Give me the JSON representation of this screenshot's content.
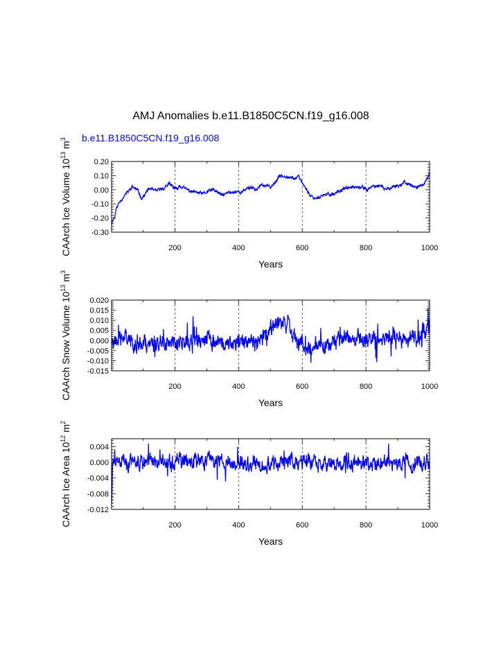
{
  "figure": {
    "title": "AMJ Anomalies b.e11.B1850C5CN.f19_g16.008",
    "case_label": "b.e11.B1850C5CN.f19_g16.008",
    "series_color": "#0000ff"
  },
  "chart_data": [
    {
      "type": "line",
      "id": "ice-volume",
      "ylabel": {
        "main": "CAArch Ice Volume 10",
        "exp": "13",
        "unit": " m",
        "unit_exp": "3"
      },
      "xlabel": "Years",
      "xlim": [
        1,
        1000
      ],
      "ylim": [
        -0.3,
        0.2
      ],
      "yticks": [
        "0.20",
        "0.10",
        "0.00",
        "-0.10",
        "-0.20",
        "-0.30"
      ],
      "ytick_values": [
        0.2,
        0.1,
        0.0,
        -0.1,
        -0.2,
        -0.3
      ],
      "xticks": [
        "200",
        "400",
        "600",
        "800",
        "1000"
      ],
      "xtick_values": [
        200,
        400,
        600,
        800,
        1000
      ],
      "gridlines_x": [
        200,
        400,
        600,
        800
      ],
      "series": [
        {
          "name": "b.e11.B1850C5CN.f19_g16.008",
          "anchors": [
            [
              1,
              -0.24
            ],
            [
              5,
              -0.21
            ],
            [
              10,
              -0.2
            ],
            [
              15,
              -0.14
            ],
            [
              25,
              -0.09
            ],
            [
              35,
              -0.06
            ],
            [
              45,
              -0.03
            ],
            [
              55,
              -0.01
            ],
            [
              65,
              0.02
            ],
            [
              75,
              0.01
            ],
            [
              85,
              -0.01
            ],
            [
              95,
              -0.06
            ],
            [
              105,
              -0.04
            ],
            [
              115,
              0.0
            ],
            [
              125,
              0.01
            ],
            [
              135,
              -0.01
            ],
            [
              150,
              0.0
            ],
            [
              165,
              0.01
            ],
            [
              180,
              0.04
            ],
            [
              190,
              0.03
            ],
            [
              205,
              0.0
            ],
            [
              215,
              0.03
            ],
            [
              230,
              0.01
            ],
            [
              250,
              -0.01
            ],
            [
              270,
              -0.02
            ],
            [
              290,
              -0.03
            ],
            [
              305,
              -0.01
            ],
            [
              320,
              0.0
            ],
            [
              335,
              -0.02
            ],
            [
              350,
              -0.04
            ],
            [
              365,
              -0.02
            ],
            [
              380,
              -0.02
            ],
            [
              395,
              -0.01
            ],
            [
              410,
              -0.02
            ],
            [
              425,
              0.01
            ],
            [
              440,
              0.02
            ],
            [
              455,
              0.0
            ],
            [
              470,
              0.03
            ],
            [
              485,
              0.03
            ],
            [
              500,
              0.02
            ],
            [
              515,
              0.05
            ],
            [
              530,
              0.1
            ],
            [
              545,
              0.1
            ],
            [
              560,
              0.09
            ],
            [
              575,
              0.08
            ],
            [
              590,
              0.09
            ],
            [
              600,
              0.05
            ],
            [
              612,
              0.01
            ],
            [
              625,
              -0.04
            ],
            [
              640,
              -0.06
            ],
            [
              655,
              -0.05
            ],
            [
              670,
              -0.04
            ],
            [
              685,
              -0.03
            ],
            [
              700,
              -0.03
            ],
            [
              715,
              -0.01
            ],
            [
              730,
              0.01
            ],
            [
              745,
              0.01
            ],
            [
              760,
              0.02
            ],
            [
              775,
              0.01
            ],
            [
              790,
              0.02
            ],
            [
              805,
              0.0
            ],
            [
              820,
              0.02
            ],
            [
              835,
              0.03
            ],
            [
              850,
              0.02
            ],
            [
              865,
              0.0
            ],
            [
              880,
              0.02
            ],
            [
              895,
              0.03
            ],
            [
              910,
              0.03
            ],
            [
              920,
              0.06
            ],
            [
              935,
              0.04
            ],
            [
              950,
              0.02
            ],
            [
              965,
              0.02
            ],
            [
              980,
              0.03
            ],
            [
              992,
              0.08
            ],
            [
              1000,
              0.11
            ]
          ],
          "noise_amplitude": 0.012,
          "seed": 11
        }
      ]
    },
    {
      "type": "line",
      "id": "snow-volume",
      "ylabel": {
        "main": "CAArch Snow Volume 10",
        "exp": "13",
        "unit": " m",
        "unit_exp": "3"
      },
      "xlabel": "Years",
      "xlim": [
        1,
        1000
      ],
      "ylim": [
        -0.015,
        0.02
      ],
      "yticks": [
        "0.020",
        "0.015",
        "0.010",
        "0.005",
        "0.000",
        "-0.005",
        "-0.010",
        "-0.015"
      ],
      "ytick_values": [
        0.02,
        0.015,
        0.01,
        0.005,
        0.0,
        -0.005,
        -0.01,
        -0.015
      ],
      "xticks": [
        "200",
        "400",
        "600",
        "800",
        "1000"
      ],
      "xtick_values": [
        200,
        400,
        600,
        800,
        1000
      ],
      "gridlines_x": [
        200,
        400,
        600,
        800
      ],
      "series": [
        {
          "name": "b.e11.B1850C5CN.f19_g16.008",
          "anchors": [
            [
              1,
              0.0
            ],
            [
              40,
              0.002
            ],
            [
              80,
              -0.001
            ],
            [
              120,
              -0.002
            ],
            [
              160,
              0.0
            ],
            [
              200,
              -0.002
            ],
            [
              240,
              0.0
            ],
            [
              280,
              -0.001
            ],
            [
              320,
              0.0
            ],
            [
              360,
              -0.002
            ],
            [
              400,
              0.0
            ],
            [
              440,
              0.001
            ],
            [
              480,
              0.002
            ],
            [
              520,
              0.008
            ],
            [
              545,
              0.01
            ],
            [
              565,
              0.003
            ],
            [
              590,
              0.0
            ],
            [
              610,
              -0.004
            ],
            [
              640,
              -0.003
            ],
            [
              680,
              0.0
            ],
            [
              720,
              0.001
            ],
            [
              760,
              0.002
            ],
            [
              800,
              0.0
            ],
            [
              840,
              0.001
            ],
            [
              880,
              0.003
            ],
            [
              920,
              0.001
            ],
            [
              960,
              0.001
            ],
            [
              1000,
              0.008
            ]
          ],
          "noise_amplitude": 0.0045,
          "seed": 23
        }
      ]
    },
    {
      "type": "line",
      "id": "ice-area",
      "ylabel": {
        "main": "CAArch Ice Area 10",
        "exp": "12",
        "unit": " m",
        "unit_exp": "2"
      },
      "xlabel": "Years",
      "xlim": [
        1,
        1000
      ],
      "ylim": [
        -0.012,
        0.006
      ],
      "yticks": [
        "0.004",
        "0.000",
        "-0.004",
        "-0.008",
        "-0.012"
      ],
      "ytick_values": [
        0.004,
        0.0,
        -0.004,
        -0.008,
        -0.012
      ],
      "xticks": [
        "200",
        "400",
        "600",
        "800",
        "1000"
      ],
      "xtick_values": [
        200,
        400,
        600,
        800,
        1000
      ],
      "gridlines_x": [
        200,
        400,
        600,
        800
      ],
      "series": [
        {
          "name": "b.e11.B1850C5CN.f19_g16.008",
          "anchors": [
            [
              1,
              -0.01
            ],
            [
              4,
              0.0
            ],
            [
              200,
              0.0
            ],
            [
              400,
              0.0
            ],
            [
              600,
              0.0
            ],
            [
              800,
              0.0
            ],
            [
              1000,
              0.0
            ]
          ],
          "noise_amplitude": 0.0022,
          "seed": 37
        }
      ]
    }
  ]
}
